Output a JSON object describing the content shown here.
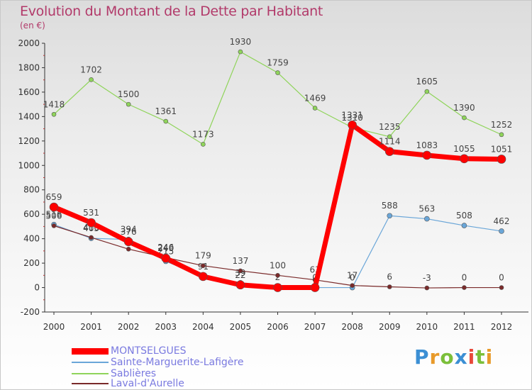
{
  "header": {
    "title": "Evolution du Montant de la Dette par Habitant",
    "unit": "(en €)"
  },
  "logo": {
    "text": "Proxiti",
    "colors": [
      "#3b8fd4",
      "#e89a2a",
      "#7bbf3a",
      "#3b8fd4",
      "#e8493a",
      "#7bbf3a",
      "#e89a2a"
    ]
  },
  "chart_data": {
    "type": "line",
    "x": [
      "2000",
      "2001",
      "2002",
      "2003",
      "2004",
      "2005",
      "2006",
      "2007",
      "2008",
      "2009",
      "2010",
      "2011",
      "2012"
    ],
    "ylim": [
      -200,
      2000
    ],
    "yticks": [
      "-200",
      "0",
      "200",
      "400",
      "600",
      "800",
      "1000",
      "1200",
      "1400",
      "1600",
      "1800",
      "2000"
    ],
    "grid": false,
    "legend": "bottom-left",
    "series": [
      {
        "name": "Sablières",
        "color": "#8fd45a",
        "values": [
          1418,
          1702,
          1500,
          1361,
          1173,
          1930,
          1759,
          1469,
          1310,
          1235,
          1605,
          1390,
          1252
        ],
        "labels": [
          "1418",
          "1702",
          "1500",
          "1361",
          "1173",
          "1930",
          "1759",
          "1469",
          "1310",
          "1235",
          "1605",
          "1390",
          "1252"
        ]
      },
      {
        "name": "Sainte-Marguerite-Lafigère",
        "color": "#6aa6d8",
        "values": [
          516,
          403,
          394,
          215,
          91,
          39,
          2,
          0,
          0,
          588,
          563,
          508,
          462
        ],
        "labels": [
          "516",
          "403",
          "394",
          "215",
          "91",
          "39",
          "2",
          "0",
          "0",
          "588",
          "563",
          "508",
          "462"
        ]
      },
      {
        "name": "Laval-d'Aurelle",
        "color": "#7a2a2a",
        "values": [
          506,
          410,
          315,
          246,
          179,
          137,
          100,
          63,
          17,
          6,
          -3,
          0,
          0
        ],
        "labels": [
          "506",
          "410",
          "",
          "246",
          "179",
          "137",
          "100",
          "63",
          "17",
          "6",
          "-3",
          "0",
          "0"
        ]
      },
      {
        "name": "MONTSELGUES",
        "color": "#ff0000",
        "values": [
          659,
          531,
          376,
          240,
          91,
          22,
          0,
          0,
          1331,
          1114,
          1083,
          1055,
          1051
        ],
        "labels": [
          "659",
          "531",
          "376",
          "240",
          "",
          "22",
          "",
          "",
          "1331",
          "1114",
          "1083",
          "1055",
          "1051"
        ]
      }
    ]
  },
  "legend": [
    {
      "name": "MONTSELGUES",
      "color": "#ff0000",
      "text_color": "#7a7ae0"
    },
    {
      "name": "Sainte-Marguerite-Lafigère",
      "color": "#6aa6d8",
      "text_color": "#7a7ae0"
    },
    {
      "name": "Sablières",
      "color": "#8fd45a",
      "text_color": "#7a7ae0"
    },
    {
      "name": "Laval-d'Aurelle",
      "color": "#7a2a2a",
      "text_color": "#7a7ae0"
    }
  ]
}
